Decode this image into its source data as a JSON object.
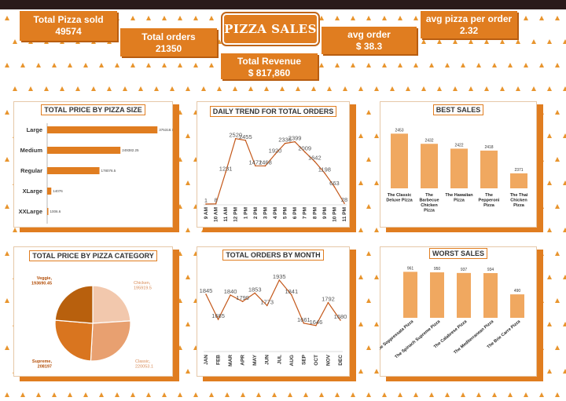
{
  "dashboard": {
    "title": "PIZZA SALES"
  },
  "kpis": {
    "pizza_sold": {
      "label": "Total Pizza sold",
      "value": "49574"
    },
    "orders": {
      "label": "Total orders",
      "value": "21350"
    },
    "revenue": {
      "label": "Total Revenue",
      "value": "$ 817,860"
    },
    "avg_order": {
      "label": "avg order",
      "value": "$ 38.3"
    },
    "avg_pizza": {
      "label": "avg pizza per order",
      "value": "2.32"
    }
  },
  "colors": {
    "accent": "#e07d20",
    "bar": "#f0a860",
    "line": "#c4581a"
  },
  "chart_data": [
    {
      "id": "size",
      "type": "bar",
      "orientation": "horizontal",
      "title": "TOTAL PRICE BY PIZZA SIZE",
      "categories": [
        "Large",
        "Medium",
        "Regular",
        "XLarge",
        "XXLarge"
      ],
      "values": [
        375318.7,
        249382.25,
        178076.5,
        14076,
        1006.6
      ],
      "labels": [
        "375318.7",
        "249382.25",
        "178076.5",
        "14076",
        "1006.6"
      ],
      "xlim": [
        0,
        380000
      ]
    },
    {
      "id": "hourly",
      "type": "line",
      "title": "DAILY TREND FOR TOTAL ORDERS",
      "categories": [
        "9 AM",
        "10 AM",
        "11 AM",
        "12 PM",
        "1 PM",
        "2 PM",
        "3 PM",
        "4 PM",
        "5 PM",
        "6 PM",
        "7 PM",
        "8 PM",
        "9 PM",
        "10 PM",
        "11 PM"
      ],
      "values": [
        1,
        8,
        1231,
        2520,
        2455,
        1472,
        1468,
        1920,
        2336,
        2399,
        2009,
        1642,
        1198,
        663,
        28
      ],
      "labels": [
        "1",
        "8",
        "1231",
        "2520",
        "2455",
        "1472",
        "1468",
        "1920",
        "2336",
        "2399",
        "2009",
        "1642",
        "1198",
        "663",
        "28"
      ],
      "ylim": [
        0,
        2600
      ]
    },
    {
      "id": "best",
      "type": "bar",
      "title": "BEST SALES",
      "categories": [
        "The Classic Deluxe Pizza",
        "The Barbecue Chicken Pizza",
        "The Hawaiian Pizza",
        "The Pepperoni Pizza",
        "The Thai Chicken Pizza"
      ],
      "values": [
        2453,
        2432,
        2422,
        2418,
        2371
      ],
      "labels": [
        "2453",
        "2432",
        "2422",
        "2418",
        "2371"
      ],
      "ylim": [
        2340,
        2460
      ]
    },
    {
      "id": "category",
      "type": "pie",
      "title": "TOTAL PRICE BY PIZZA CATEGORY",
      "categories": [
        "Chicken",
        "Classic",
        "Supreme",
        "Veggie"
      ],
      "values": [
        195919.5,
        220053.1,
        208197,
        193690.45
      ],
      "labels": [
        "Chicken, 195919.5",
        "Classic, 220053.1",
        "Supreme, 208197",
        "Veggie, 193690.45"
      ],
      "colors": [
        "#f2c8ad",
        "#e8a070",
        "#d9751f",
        "#b8600d"
      ]
    },
    {
      "id": "monthly",
      "type": "line",
      "title": "TOTAL ORDERS BY MONTH",
      "categories": [
        "JAN",
        "FEB",
        "MAR",
        "APR",
        "MAY",
        "JUN",
        "JUL",
        "AUG",
        "SEP",
        "OCT",
        "NOV",
        "DEC"
      ],
      "values": [
        1845,
        1685,
        1840,
        1799,
        1853,
        1773,
        1935,
        1841,
        1661,
        1646,
        1792,
        1680
      ],
      "labels": [
        "1845",
        "1685",
        "1840",
        "1799",
        "1853",
        "1773",
        "1935",
        "1841",
        "1661",
        "1646",
        "1792",
        "1680"
      ],
      "ylim": [
        1540,
        1960
      ]
    },
    {
      "id": "worst",
      "type": "bar",
      "title": "WORST SALES",
      "categories": [
        "The Soppressata Pizza",
        "The Spinach Supreme Pizza",
        "The Calabrese Pizza",
        "The Mediterranean Pizza",
        "The Brie Carre Pizza"
      ],
      "values": [
        961,
        950,
        937,
        934,
        490
      ],
      "labels": [
        "961",
        "950",
        "937",
        "934",
        "490"
      ],
      "ylim": [
        0,
        1000
      ]
    }
  ]
}
